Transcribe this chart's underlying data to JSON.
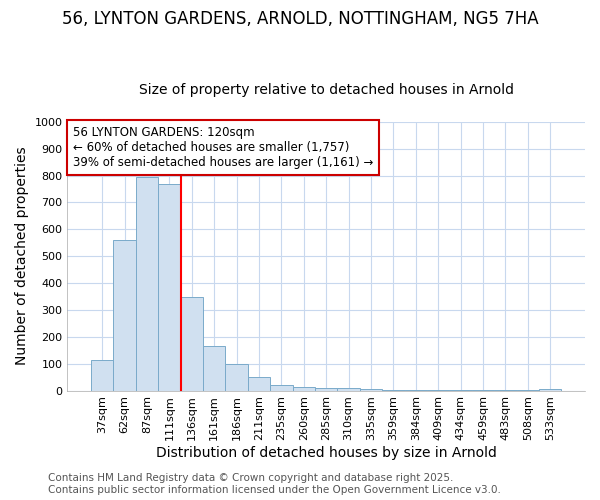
{
  "title_line1": "56, LYNTON GARDENS, ARNOLD, NOTTINGHAM, NG5 7HA",
  "title_line2": "Size of property relative to detached houses in Arnold",
  "xlabel": "Distribution of detached houses by size in Arnold",
  "ylabel": "Number of detached properties",
  "bar_labels": [
    "37sqm",
    "62sqm",
    "87sqm",
    "111sqm",
    "136sqm",
    "161sqm",
    "186sqm",
    "211sqm",
    "235sqm",
    "260sqm",
    "285sqm",
    "310sqm",
    "335sqm",
    "359sqm",
    "384sqm",
    "409sqm",
    "434sqm",
    "459sqm",
    "483sqm",
    "508sqm",
    "533sqm"
  ],
  "bar_values": [
    115,
    560,
    795,
    770,
    350,
    165,
    98,
    52,
    20,
    15,
    10,
    8,
    5,
    3,
    1,
    1,
    1,
    1,
    1,
    1,
    5
  ],
  "bar_color": "#d0e0f0",
  "bar_edge_color": "#7aaaca",
  "red_line_x": 3.5,
  "ylim": [
    0,
    1000
  ],
  "yticks": [
    0,
    100,
    200,
    300,
    400,
    500,
    600,
    700,
    800,
    900,
    1000
  ],
  "annotation_line1": "56 LYNTON GARDENS: 120sqm",
  "annotation_line2": "← 60% of detached houses are smaller (1,757)",
  "annotation_line3": "39% of semi-detached houses are larger (1,161) →",
  "annotation_box_color": "#ffffff",
  "annotation_box_edge": "#cc0000",
  "footer_line1": "Contains HM Land Registry data © Crown copyright and database right 2025.",
  "footer_line2": "Contains public sector information licensed under the Open Government Licence v3.0.",
  "background_color": "#ffffff",
  "grid_color": "#c8d8ee",
  "title_fontsize": 12,
  "subtitle_fontsize": 10,
  "axis_label_fontsize": 10,
  "tick_fontsize": 8,
  "annotation_fontsize": 8.5,
  "footer_fontsize": 7.5
}
